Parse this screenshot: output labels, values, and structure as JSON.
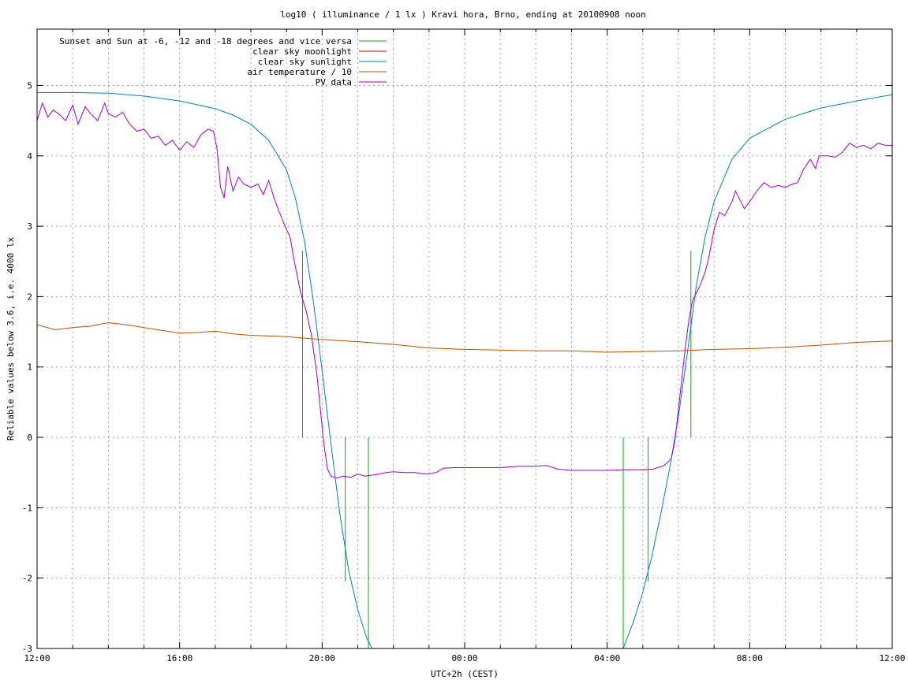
{
  "chart_data": {
    "type": "line",
    "title": "log10 ( illuminance / 1 lx ) Kravi hora, Brno, ending at 20100908 noon",
    "xlabel": "UTC+2h (CEST)",
    "ylabel": "Reliable values below 3.6, i.e. 4000 lx",
    "x_unit": "hours of day, crossing midnight",
    "xlim": [
      12,
      36
    ],
    "ylim": [
      -3,
      5.8
    ],
    "xticks": [
      12,
      16,
      20,
      24,
      28,
      32,
      36
    ],
    "xtick_labels": [
      "12:00",
      "16:00",
      "20:00",
      "00:00",
      "04:00",
      "08:00",
      "12:00"
    ],
    "yticks": [
      -3,
      -2,
      -1,
      0,
      1,
      2,
      3,
      4,
      5
    ],
    "ytick_labels": [
      "-3",
      "-2",
      "-1",
      "0",
      "1",
      "2",
      "3",
      "4",
      "5"
    ],
    "grid": true,
    "legend_position": "top-left",
    "series": [
      {
        "name": "Sunset and Sun at -6, -12 and -18 degrees and vice versa",
        "color": "#00b000",
        "style": "vertical-markers",
        "markers": [
          {
            "x": 19.45,
            "y_from": 0,
            "y_to": 2.65
          },
          {
            "x": 20.65,
            "y_from": 0,
            "y_to": -2.05
          },
          {
            "x": 21.3,
            "y_from": 0,
            "y_to": -3.0
          },
          {
            "x": 28.45,
            "y_from": 0,
            "y_to": -3.0
          },
          {
            "x": 29.15,
            "y_from": 0,
            "y_to": -2.05
          },
          {
            "x": 30.35,
            "y_from": 0,
            "y_to": 2.65
          }
        ]
      },
      {
        "name": "clear sky moonlight",
        "color": "#c00000",
        "points": []
      },
      {
        "name": "clear sky sunlight",
        "color": "#0080c0",
        "points": [
          [
            12.0,
            4.9
          ],
          [
            13.0,
            4.9
          ],
          [
            14.0,
            4.89
          ],
          [
            15.0,
            4.85
          ],
          [
            16.0,
            4.78
          ],
          [
            17.0,
            4.67
          ],
          [
            17.5,
            4.58
          ],
          [
            18.0,
            4.45
          ],
          [
            18.5,
            4.22
          ],
          [
            19.0,
            3.8
          ],
          [
            19.25,
            3.4
          ],
          [
            19.5,
            2.8
          ],
          [
            19.75,
            1.95
          ],
          [
            20.0,
            0.95
          ],
          [
            20.25,
            -0.1
          ],
          [
            20.5,
            -1.1
          ],
          [
            20.75,
            -1.9
          ],
          [
            21.0,
            -2.45
          ],
          [
            21.25,
            -2.85
          ],
          [
            21.4,
            -3.0
          ]
        ]
      },
      {
        "name": "clear sky sunlight (dawn)",
        "color": "#0080c0",
        "points": [
          [
            28.45,
            -3.0
          ],
          [
            28.75,
            -2.6
          ],
          [
            29.0,
            -2.2
          ],
          [
            29.25,
            -1.7
          ],
          [
            29.5,
            -1.1
          ],
          [
            29.75,
            -0.45
          ],
          [
            30.0,
            0.3
          ],
          [
            30.25,
            1.2
          ],
          [
            30.5,
            2.15
          ],
          [
            30.75,
            2.85
          ],
          [
            31.0,
            3.35
          ],
          [
            31.5,
            3.95
          ],
          [
            32.0,
            4.25
          ],
          [
            33.0,
            4.52
          ],
          [
            34.0,
            4.68
          ],
          [
            35.0,
            4.78
          ],
          [
            36.0,
            4.87
          ]
        ]
      },
      {
        "name": "air temperature / 10",
        "color": "#c05000",
        "points": [
          [
            12.0,
            1.6
          ],
          [
            12.5,
            1.53
          ],
          [
            13.0,
            1.56
          ],
          [
            13.5,
            1.58
          ],
          [
            14.0,
            1.63
          ],
          [
            14.5,
            1.6
          ],
          [
            15.0,
            1.56
          ],
          [
            15.5,
            1.52
          ],
          [
            16.0,
            1.48
          ],
          [
            16.5,
            1.49
          ],
          [
            17.0,
            1.51
          ],
          [
            17.5,
            1.47
          ],
          [
            18.0,
            1.45
          ],
          [
            18.5,
            1.44
          ],
          [
            19.0,
            1.43
          ],
          [
            19.5,
            1.41
          ],
          [
            20.0,
            1.39
          ],
          [
            21.0,
            1.36
          ],
          [
            22.0,
            1.32
          ],
          [
            23.0,
            1.27
          ],
          [
            24.0,
            1.25
          ],
          [
            25.0,
            1.24
          ],
          [
            26.0,
            1.23
          ],
          [
            27.0,
            1.23
          ],
          [
            28.0,
            1.21
          ],
          [
            29.0,
            1.22
          ],
          [
            30.0,
            1.23
          ],
          [
            31.0,
            1.25
          ],
          [
            32.0,
            1.26
          ],
          [
            33.0,
            1.28
          ],
          [
            34.0,
            1.31
          ],
          [
            35.0,
            1.35
          ],
          [
            36.0,
            1.37
          ]
        ]
      },
      {
        "name": "PV data",
        "color": "#a000d0",
        "points": [
          [
            12.0,
            4.5
          ],
          [
            12.15,
            4.75
          ],
          [
            12.3,
            4.55
          ],
          [
            12.45,
            4.65
          ],
          [
            12.6,
            4.6
          ],
          [
            12.8,
            4.5
          ],
          [
            13.0,
            4.72
          ],
          [
            13.15,
            4.45
          ],
          [
            13.35,
            4.7
          ],
          [
            13.5,
            4.6
          ],
          [
            13.7,
            4.5
          ],
          [
            13.9,
            4.75
          ],
          [
            14.0,
            4.6
          ],
          [
            14.2,
            4.55
          ],
          [
            14.4,
            4.62
          ],
          [
            14.6,
            4.45
          ],
          [
            14.8,
            4.35
          ],
          [
            15.0,
            4.38
          ],
          [
            15.2,
            4.25
          ],
          [
            15.4,
            4.28
          ],
          [
            15.6,
            4.15
          ],
          [
            15.8,
            4.22
          ],
          [
            16.0,
            4.08
          ],
          [
            16.2,
            4.2
          ],
          [
            16.4,
            4.12
          ],
          [
            16.6,
            4.3
          ],
          [
            16.8,
            4.38
          ],
          [
            16.95,
            4.35
          ],
          [
            17.05,
            4.1
          ],
          [
            17.15,
            3.55
          ],
          [
            17.25,
            3.4
          ],
          [
            17.35,
            3.85
          ],
          [
            17.5,
            3.5
          ],
          [
            17.65,
            3.7
          ],
          [
            17.8,
            3.6
          ],
          [
            18.0,
            3.55
          ],
          [
            18.2,
            3.6
          ],
          [
            18.35,
            3.45
          ],
          [
            18.5,
            3.65
          ],
          [
            18.65,
            3.4
          ],
          [
            18.8,
            3.2
          ],
          [
            19.0,
            2.95
          ],
          [
            19.1,
            2.85
          ],
          [
            19.2,
            2.55
          ],
          [
            19.3,
            2.3
          ],
          [
            19.4,
            2.05
          ],
          [
            19.55,
            1.8
          ],
          [
            19.7,
            1.45
          ],
          [
            19.85,
            0.9
          ],
          [
            19.95,
            0.4
          ],
          [
            20.05,
            -0.1
          ],
          [
            20.15,
            -0.45
          ],
          [
            20.25,
            -0.55
          ],
          [
            20.4,
            -0.58
          ],
          [
            20.6,
            -0.55
          ],
          [
            20.8,
            -0.57
          ],
          [
            21.0,
            -0.52
          ],
          [
            21.2,
            -0.55
          ],
          [
            21.5,
            -0.53
          ],
          [
            21.8,
            -0.5
          ],
          [
            22.0,
            -0.49
          ],
          [
            22.3,
            -0.5
          ],
          [
            22.6,
            -0.5
          ],
          [
            22.9,
            -0.52
          ],
          [
            23.2,
            -0.5
          ],
          [
            23.4,
            -0.44
          ],
          [
            23.7,
            -0.43
          ],
          [
            24.0,
            -0.43
          ],
          [
            24.5,
            -0.43
          ],
          [
            25.0,
            -0.43
          ],
          [
            25.5,
            -0.41
          ],
          [
            26.0,
            -0.41
          ],
          [
            26.3,
            -0.4
          ],
          [
            26.6,
            -0.45
          ],
          [
            27.0,
            -0.47
          ],
          [
            27.5,
            -0.47
          ],
          [
            28.0,
            -0.47
          ],
          [
            28.5,
            -0.46
          ],
          [
            29.0,
            -0.46
          ],
          [
            29.3,
            -0.45
          ],
          [
            29.6,
            -0.4
          ],
          [
            29.8,
            -0.3
          ],
          [
            29.9,
            -0.05
          ],
          [
            30.0,
            0.4
          ],
          [
            30.1,
            0.85
          ],
          [
            30.2,
            1.3
          ],
          [
            30.3,
            1.7
          ],
          [
            30.4,
            1.95
          ],
          [
            30.6,
            2.15
          ],
          [
            30.75,
            2.35
          ],
          [
            30.85,
            2.55
          ],
          [
            31.0,
            2.95
          ],
          [
            31.15,
            3.2
          ],
          [
            31.3,
            3.15
          ],
          [
            31.5,
            3.35
          ],
          [
            31.6,
            3.5
          ],
          [
            31.75,
            3.35
          ],
          [
            31.85,
            3.25
          ],
          [
            32.0,
            3.35
          ],
          [
            32.2,
            3.5
          ],
          [
            32.4,
            3.62
          ],
          [
            32.6,
            3.55
          ],
          [
            32.8,
            3.58
          ],
          [
            33.0,
            3.55
          ],
          [
            33.2,
            3.6
          ],
          [
            33.35,
            3.62
          ],
          [
            33.5,
            3.8
          ],
          [
            33.7,
            3.95
          ],
          [
            33.85,
            3.82
          ],
          [
            33.95,
            4.0
          ],
          [
            34.2,
            4.0
          ],
          [
            34.4,
            3.98
          ],
          [
            34.6,
            4.05
          ],
          [
            34.8,
            4.18
          ],
          [
            35.0,
            4.12
          ],
          [
            35.2,
            4.15
          ],
          [
            35.4,
            4.1
          ],
          [
            35.6,
            4.18
          ],
          [
            35.8,
            4.15
          ],
          [
            36.0,
            4.15
          ]
        ]
      }
    ],
    "legend": [
      {
        "label": "Sunset and Sun at -6, -12 and -18 degrees and vice versa",
        "color": "#00b000"
      },
      {
        "label": "clear sky moonlight",
        "color": "#c00000"
      },
      {
        "label": "clear sky sunlight",
        "color": "#0080c0"
      },
      {
        "label": "air temperature / 10",
        "color": "#c05000"
      },
      {
        "label": "PV data",
        "color": "#a000d0"
      }
    ]
  }
}
